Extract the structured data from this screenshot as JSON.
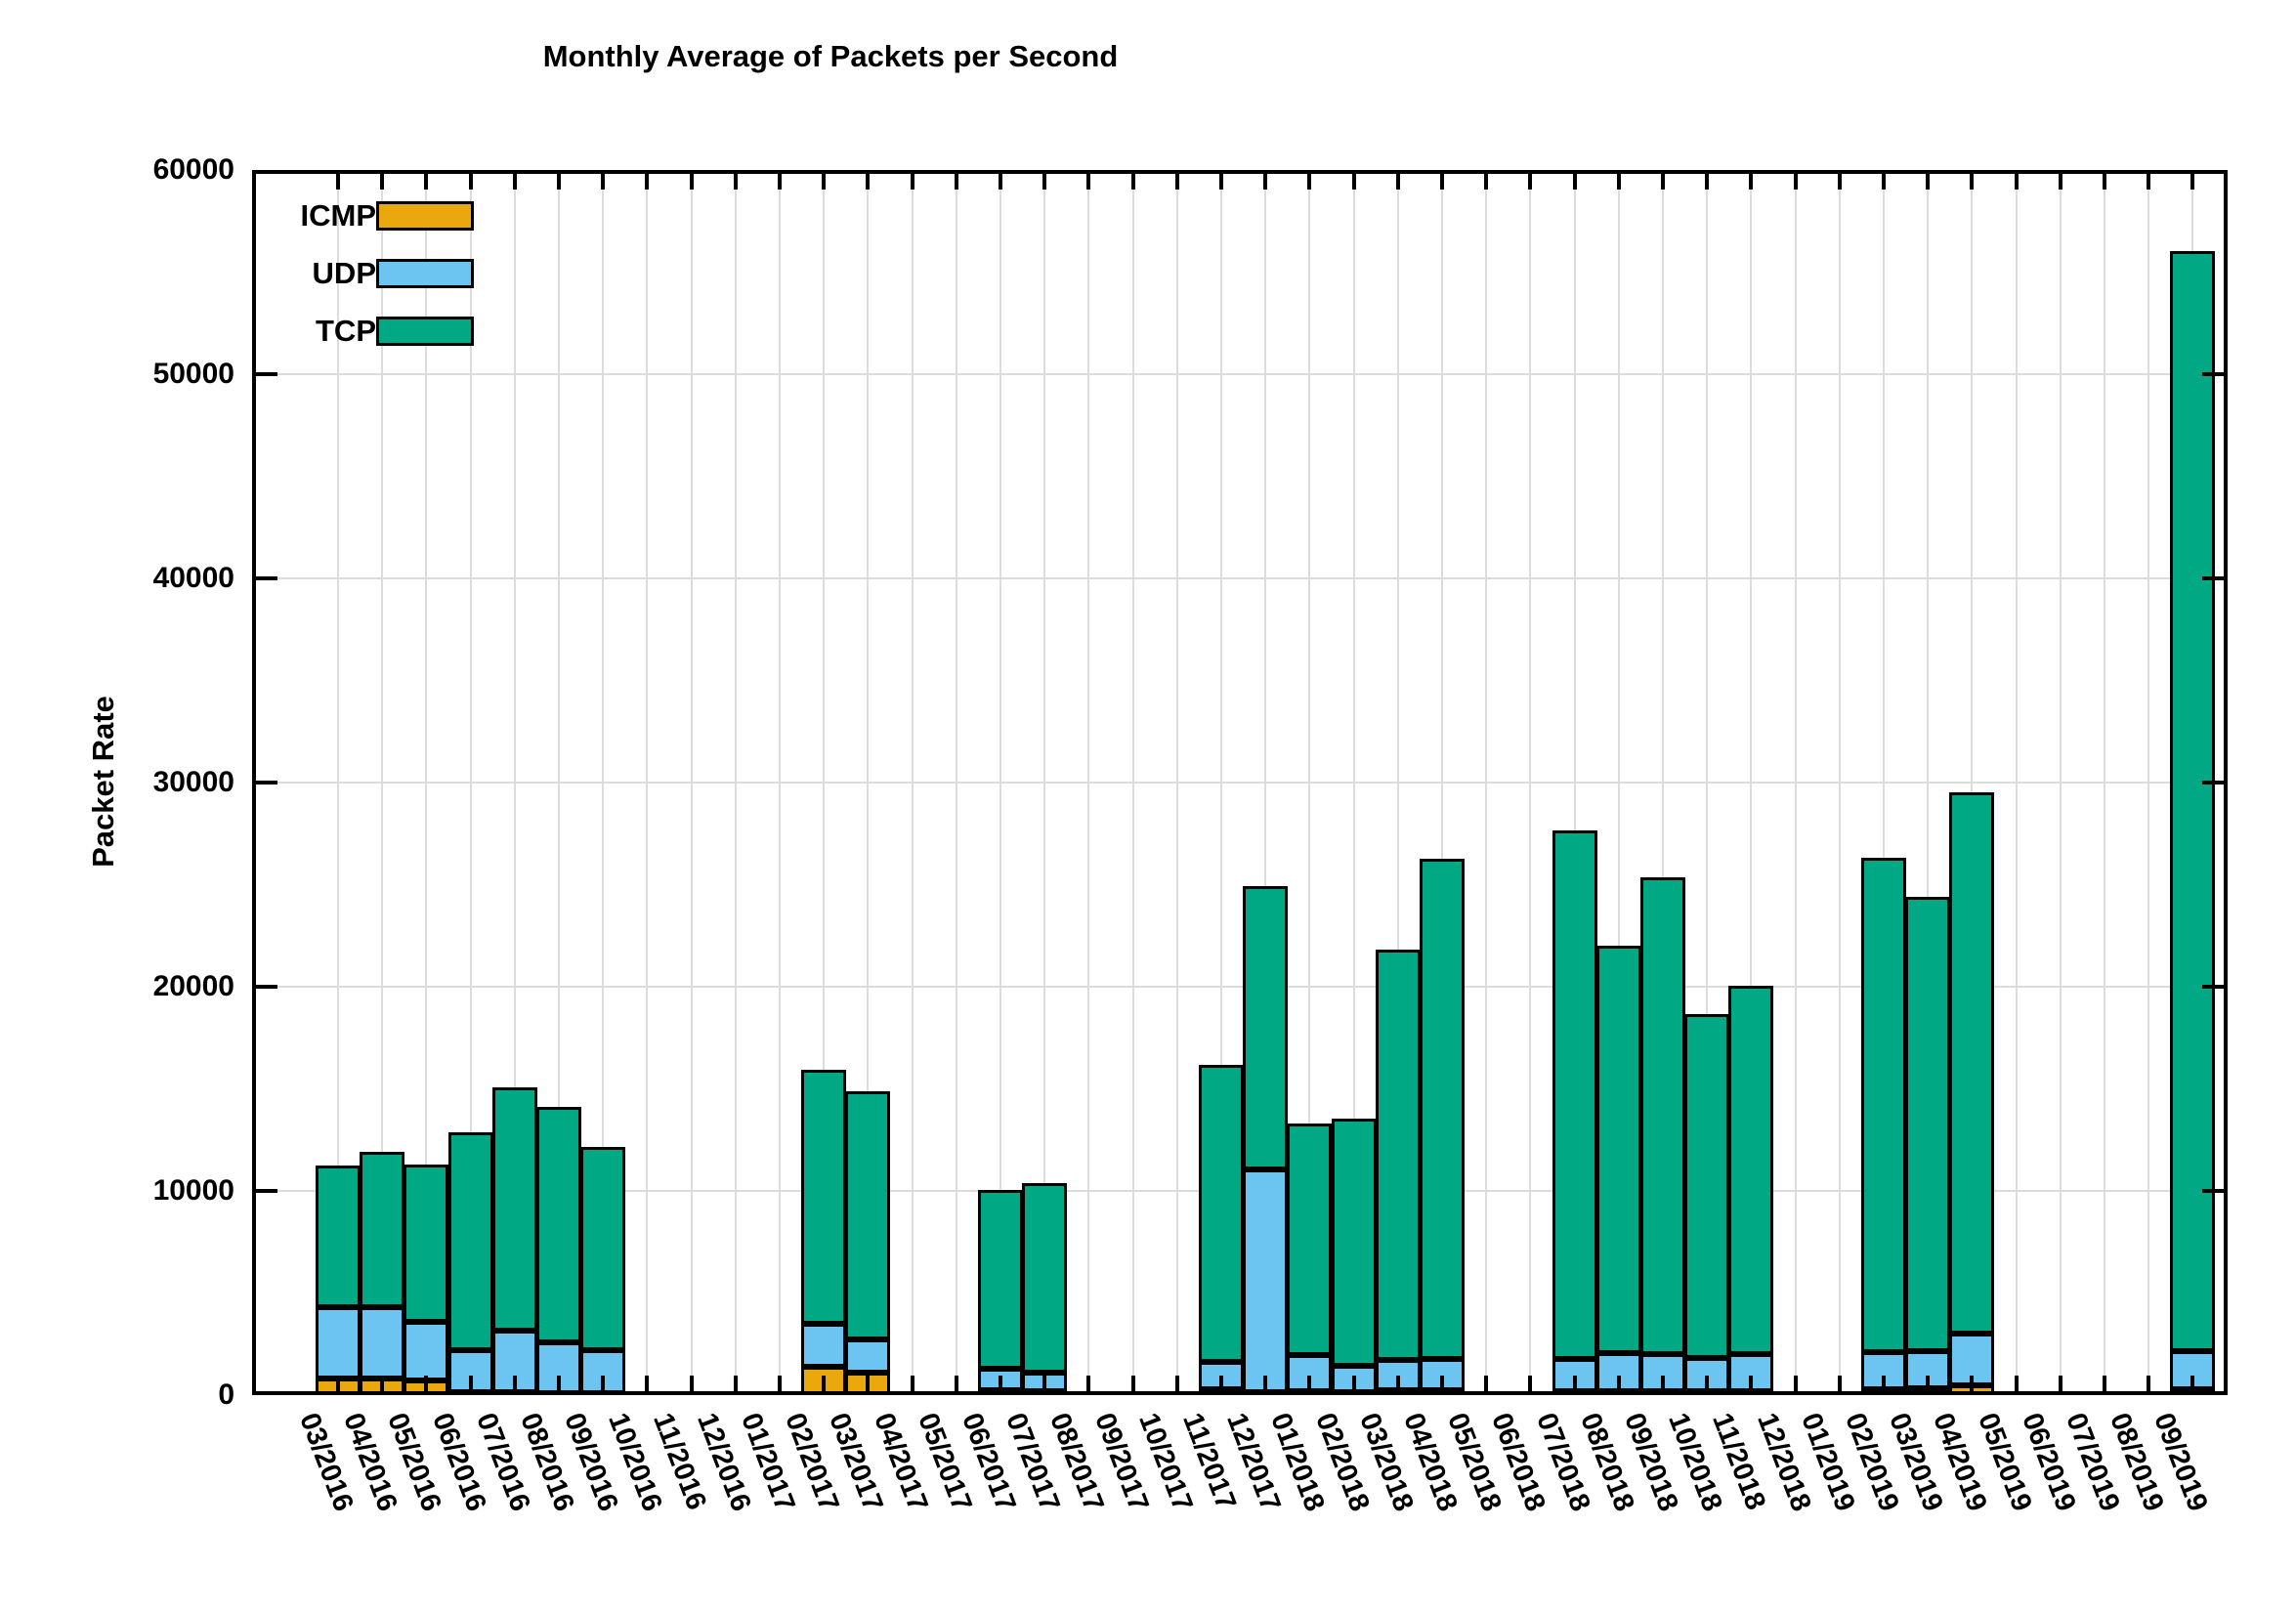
{
  "title": "Monthly Average of Packets per Second",
  "ylabel": "Packet Rate",
  "legend": {
    "items": [
      {
        "label": "ICMP"
      },
      {
        "label": "UDP"
      },
      {
        "label": "TCP"
      }
    ]
  },
  "chart_data": {
    "type": "bar",
    "stacked": true,
    "title": "Monthly Average of Packets per Second",
    "xlabel": "",
    "ylabel": "Packet Rate",
    "ylim": [
      0,
      60000
    ],
    "yticks": [
      0,
      10000,
      20000,
      30000,
      40000,
      50000,
      60000
    ],
    "grid": true,
    "legend_position": "top-left-inside",
    "categories": [
      "03/2016",
      "04/2016",
      "05/2016",
      "06/2016",
      "07/2016",
      "08/2016",
      "09/2016",
      "10/2016",
      "11/2016",
      "12/2016",
      "01/2017",
      "02/2017",
      "03/2017",
      "04/2017",
      "05/2017",
      "06/2017",
      "07/2017",
      "08/2017",
      "09/2017",
      "10/2017",
      "11/2017",
      "12/2017",
      "01/2018",
      "02/2018",
      "03/2018",
      "04/2018",
      "05/2018",
      "06/2018",
      "07/2018",
      "08/2018",
      "09/2018",
      "10/2018",
      "11/2018",
      "12/2018",
      "01/2019",
      "02/2019",
      "03/2019",
      "04/2019",
      "05/2019",
      "06/2019",
      "07/2019",
      "08/2019",
      "09/2019"
    ],
    "series": [
      {
        "name": "ICMP",
        "color": "#eaa80d",
        "values": [
          800,
          800,
          700,
          150,
          150,
          100,
          100,
          0,
          0,
          0,
          0,
          1400,
          1100,
          0,
          0,
          250,
          200,
          0,
          0,
          0,
          300,
          150,
          200,
          150,
          250,
          250,
          0,
          0,
          200,
          200,
          200,
          200,
          200,
          0,
          0,
          300,
          350,
          500,
          0,
          0,
          0,
          0,
          300
        ]
      },
      {
        "name": "UDP",
        "color": "#6cc4f0",
        "values": [
          3500,
          3500,
          2900,
          2050,
          3000,
          2500,
          2100,
          0,
          0,
          0,
          0,
          2100,
          1650,
          0,
          0,
          1050,
          900,
          0,
          0,
          0,
          1350,
          10900,
          1750,
          1300,
          1450,
          1500,
          0,
          0,
          1550,
          1850,
          1800,
          1600,
          1800,
          0,
          0,
          1800,
          1800,
          2500,
          0,
          0,
          0,
          0,
          1850
        ]
      },
      {
        "name": "TCP",
        "color": "#00a884",
        "values": [
          6950,
          7600,
          7700,
          10650,
          11900,
          11500,
          9950,
          0,
          0,
          0,
          0,
          12450,
          12150,
          0,
          0,
          8750,
          9300,
          0,
          0,
          0,
          14500,
          13900,
          11350,
          12100,
          20100,
          24500,
          0,
          0,
          25900,
          19950,
          23350,
          16850,
          18050,
          0,
          0,
          24200,
          22250,
          26500,
          0,
          0,
          0,
          0,
          53900
        ]
      }
    ]
  }
}
